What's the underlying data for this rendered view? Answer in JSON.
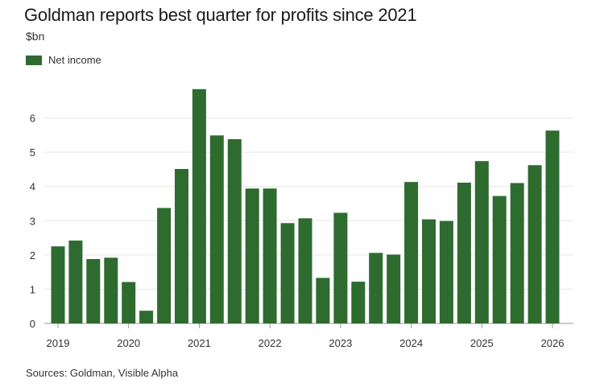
{
  "title": "Goldman reports best quarter for profits since 2021",
  "unit": "$bn",
  "legend": {
    "label": "Net income",
    "color": "#2e6b2f"
  },
  "source": "Sources: Goldman, Visible Alpha",
  "chart_data": {
    "type": "bar",
    "title": "Goldman reports best quarter for profits since 2021",
    "ylabel": "$bn",
    "xlabel": "",
    "ylim": [
      0,
      7
    ],
    "yticks": [
      0,
      1,
      2,
      3,
      4,
      5,
      6
    ],
    "xtick_labels": [
      "2019",
      "2020",
      "2021",
      "2022",
      "2023",
      "2024",
      "2025",
      "2026"
    ],
    "grid": true,
    "legend_position": "top-left",
    "series": [
      {
        "name": "Net income",
        "color": "#2e6b2f",
        "categories": [
          "Q1 2019",
          "Q2 2019",
          "Q3 2019",
          "Q4 2019",
          "Q1 2020",
          "Q2 2020",
          "Q3 2020",
          "Q4 2020",
          "Q1 2021",
          "Q2 2021",
          "Q3 2021",
          "Q4 2021",
          "Q1 2022",
          "Q2 2022",
          "Q3 2022",
          "Q4 2022",
          "Q1 2023",
          "Q2 2023",
          "Q3 2023",
          "Q4 2023",
          "Q1 2024",
          "Q2 2024",
          "Q3 2024",
          "Q4 2024",
          "Q1 2025",
          "Q2 2025",
          "Q3 2025",
          "Q4 2025",
          "Q1 2026"
        ],
        "values": [
          2.25,
          2.42,
          1.88,
          1.92,
          1.21,
          0.37,
          3.37,
          4.51,
          6.84,
          5.49,
          5.38,
          3.94,
          3.94,
          2.93,
          3.07,
          1.33,
          3.23,
          1.22,
          2.06,
          2.01,
          4.13,
          3.04,
          2.99,
          4.11,
          4.74,
          3.72,
          4.1,
          4.62,
          5.63
        ]
      }
    ]
  }
}
